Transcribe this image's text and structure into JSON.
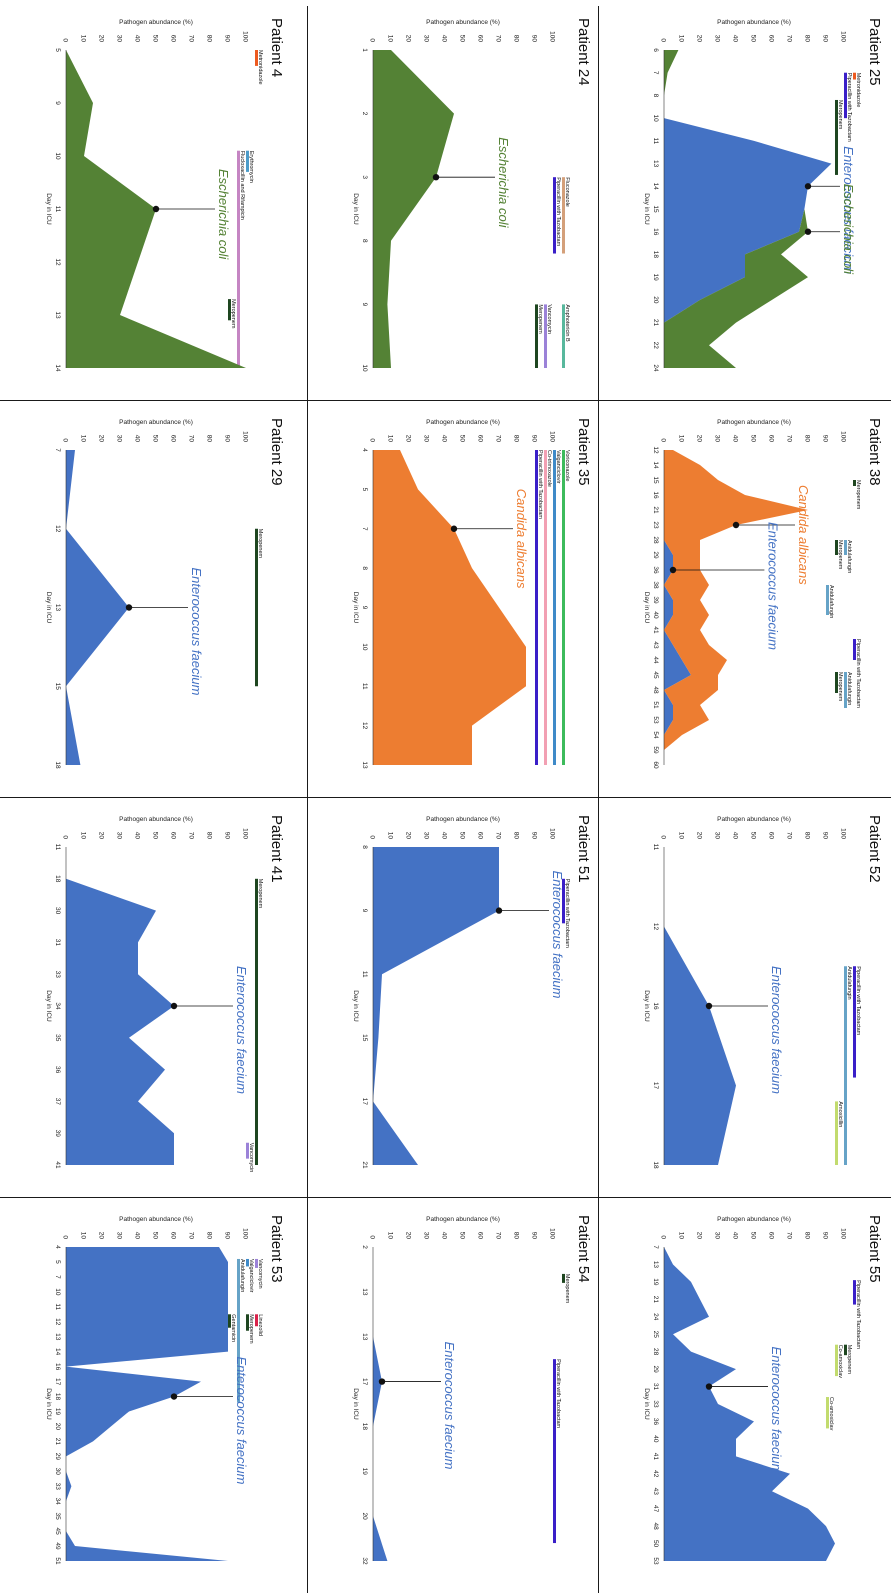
{
  "y_axis_label": "Pathogen abundance (%)",
  "x_axis_label": "Day in ICU",
  "y_ticks": [
    0,
    10,
    20,
    30,
    40,
    50,
    60,
    70,
    80,
    90,
    100
  ],
  "colors": {
    "Escherichia coli": "#548235",
    "Enterococcus faecium": "#4472c4",
    "Candida albicans": "#ed7d31",
    "Meropenem": "#1e4620",
    "Metronidazole": "#ed5a1f",
    "Erythromycin": "#4c9cc9",
    "Flucloxacillin and Rifampicin": "#c585c3",
    "Fluconazole": "#d4a07a",
    "Piperacillin with Tazobactam": "#3a1fc8",
    "Vancomycin": "#9b82d8",
    "Amphotericin B": "#58b89d",
    "Voriconazole": "#3dbb5c",
    "Valganciclovir": "#3f8ac8",
    "Co-trimoxazole": "#f2a0b3",
    "Anidulafungin": "#66a3c7",
    "Gentamicin": "#1e4620",
    "Linezolid": "#d9224a",
    "Amoxicillin": "#c2db6e",
    "Co-amoxiclav": "#c2db6e"
  },
  "chart_data": [
    {
      "type": "area",
      "title": "Patient 4",
      "xlabel": "Day in ICU",
      "ylabel": "Pathogen abundance (%)",
      "ylim": [
        0,
        100
      ],
      "x": [
        "5",
        "9",
        "10",
        "11",
        "12",
        "13",
        "14"
      ],
      "series": [
        {
          "name": "Escherichia coli",
          "values": [
            0,
            15,
            10,
            50,
            40,
            30,
            100
          ]
        }
      ],
      "annotations": [
        {
          "text": "Escherichia coli",
          "series": 0,
          "point": 3
        }
      ],
      "drugs": [
        {
          "label": "Metronidazole",
          "start": 0,
          "end": 0.3
        },
        {
          "label": "Erythromycin",
          "start": 1.9,
          "end": 2.3
        },
        {
          "label": "Flucloxacillin and Rifampicin",
          "start": 1.9,
          "end": 6
        },
        {
          "label": "Meropenem",
          "start": 4.7,
          "end": 5.1
        }
      ]
    },
    {
      "type": "area",
      "title": "Patient 24",
      "xlabel": "Day in ICU",
      "ylabel": "Pathogen abundance (%)",
      "ylim": [
        0,
        100
      ],
      "x": [
        "1",
        "2",
        "3",
        "8",
        "9",
        "10"
      ],
      "series": [
        {
          "name": "Escherichia coli",
          "values": [
            10,
            45,
            35,
            10,
            8,
            10
          ]
        }
      ],
      "annotations": [
        {
          "text": "Escherichia coli",
          "series": 0,
          "point": 2
        }
      ],
      "drugs": [
        {
          "label": "Fluconazole",
          "start": 2,
          "end": 3.2
        },
        {
          "label": "Piperacillin with Tazobactam",
          "start": 2,
          "end": 3.2
        },
        {
          "label": "Vancomycin",
          "start": 4,
          "end": 5
        },
        {
          "label": "Meropenem",
          "start": 4,
          "end": 5
        },
        {
          "label": "Amphotericin B",
          "start": 4,
          "end": 5
        }
      ]
    },
    {
      "type": "area",
      "title": "Patient 25",
      "xlabel": "Day in ICU",
      "ylabel": "Pathogen abundance (%)",
      "ylim": [
        0,
        100
      ],
      "x": [
        "6",
        "7",
        "8",
        "10",
        "11",
        "13",
        "14",
        "15",
        "16",
        "18",
        "19",
        "20",
        "21",
        "22",
        "24"
      ],
      "series": [
        {
          "name": "Enterococcus faecium",
          "values": [
            0,
            0,
            0,
            0,
            50,
            93,
            80,
            78,
            75,
            45,
            45,
            20,
            0,
            0,
            0
          ]
        },
        {
          "name": "Escherichia coli",
          "values": [
            8,
            2,
            0,
            0,
            0,
            0,
            0,
            0,
            5,
            20,
            35,
            40,
            40,
            25,
            40
          ]
        }
      ],
      "annotations": [
        {
          "text": "Enterococcus faecium",
          "series": 0,
          "point": 6
        },
        {
          "text": "Escherichia coli",
          "series": 1,
          "point": 8
        }
      ],
      "drugs": [
        {
          "label": "Metronidazole",
          "start": 1,
          "end": 1.3
        },
        {
          "label": "Piperacillin with Tazobactam",
          "start": 1,
          "end": 3
        },
        {
          "label": "Meropenem",
          "start": 2.2,
          "end": 5.5
        }
      ]
    },
    {
      "type": "area",
      "title": "Patient 29",
      "xlabel": "Day in ICU",
      "ylabel": "Pathogen abundance (%)",
      "ylim": [
        0,
        100
      ],
      "x": [
        "7",
        "12",
        "13",
        "15",
        "18"
      ],
      "series": [
        {
          "name": "Enterococcus faecium",
          "values": [
            5,
            0,
            35,
            0,
            8
          ]
        }
      ],
      "annotations": [
        {
          "text": "Enterococcus faecium",
          "series": 0,
          "point": 2
        }
      ],
      "drugs": [
        {
          "label": "Meropenem",
          "start": 1,
          "end": 3
        }
      ]
    },
    {
      "type": "area",
      "title": "Patient 35",
      "xlabel": "Day in ICU",
      "ylabel": "Pathogen abundance (%)",
      "ylim": [
        0,
        100
      ],
      "x": [
        "4",
        "5",
        "7",
        "8",
        "9",
        "10",
        "11",
        "12",
        "13"
      ],
      "series": [
        {
          "name": "Candida albicans",
          "values": [
            15,
            25,
            45,
            55,
            70,
            85,
            85,
            55,
            55
          ]
        }
      ],
      "annotations": [
        {
          "text": "Candida albicans",
          "series": 0,
          "point": 2
        }
      ],
      "drugs": [
        {
          "label": "Voriconazole",
          "start": 0,
          "end": 8
        },
        {
          "label": "Valganciclovir",
          "start": 0,
          "end": 8
        },
        {
          "label": "Co-trimoxazole",
          "start": 0,
          "end": 8
        },
        {
          "label": "Piperacillin with Tazobactam",
          "start": 0,
          "end": 8
        }
      ]
    },
    {
      "type": "area",
      "title": "Patient 38",
      "xlabel": "Day in ICU",
      "ylabel": "Pathogen abundance (%)",
      "ylim": [
        0,
        100
      ],
      "x": [
        "12",
        "14",
        "15",
        "16",
        "21",
        "23",
        "28",
        "29",
        "36",
        "38",
        "39",
        "40",
        "41",
        "43",
        "44",
        "45",
        "48",
        "51",
        "53",
        "54",
        "59",
        "60"
      ],
      "series": [
        {
          "name": "Enterococcus faecium",
          "values": [
            0,
            0,
            0,
            0,
            0,
            0,
            0,
            5,
            5,
            0,
            5,
            5,
            0,
            5,
            10,
            15,
            0,
            5,
            5,
            0,
            0,
            0
          ]
        },
        {
          "name": "Candida albicans",
          "values": [
            5,
            20,
            30,
            45,
            80,
            40,
            20,
            15,
            15,
            25,
            15,
            20,
            20,
            20,
            25,
            15,
            30,
            15,
            20,
            10,
            0,
            0
          ]
        }
      ],
      "annotations": [
        {
          "text": "Candida albicans",
          "series": 1,
          "point": 5
        },
        {
          "text": "Enterococcus faecium",
          "series": 0,
          "point": 8
        }
      ],
      "drugs": [
        {
          "label": "Meropenem",
          "start": 2,
          "end": 2.4
        },
        {
          "label": "Anidulafungin",
          "start": 6,
          "end": 7
        },
        {
          "label": "Meropenem",
          "start": 6,
          "end": 7
        },
        {
          "label": "Anidulafungin",
          "start": 9,
          "end": 11
        },
        {
          "label": "Piperacillin with Tazobactam",
          "start": 12.6,
          "end": 14
        },
        {
          "label": "Anidulafungin",
          "start": 14.8,
          "end": 17.2
        },
        {
          "label": "Meropenem",
          "start": 14.8,
          "end": 16.2
        }
      ]
    },
    {
      "type": "area",
      "title": "Patient 41",
      "xlabel": "Day in ICU",
      "ylabel": "Pathogen abundance (%)",
      "ylim": [
        0,
        100
      ],
      "x": [
        "11",
        "18",
        "30",
        "31",
        "33",
        "34",
        "35",
        "36",
        "37",
        "39",
        "41"
      ],
      "series": [
        {
          "name": "Enterococcus faecium",
          "values": [
            0,
            0,
            50,
            40,
            40,
            60,
            35,
            55,
            40,
            60,
            60
          ]
        }
      ],
      "annotations": [
        {
          "text": "Enterococcus faecium",
          "series": 0,
          "point": 5
        }
      ],
      "drugs": [
        {
          "label": "Meropenem",
          "start": 1,
          "end": 10
        },
        {
          "label": "Vancomycin",
          "start": 9.3,
          "end": 9.8
        }
      ]
    },
    {
      "type": "area",
      "title": "Patient 51",
      "xlabel": "Day in ICU",
      "ylabel": "Pathogen abundance (%)",
      "ylim": [
        0,
        100
      ],
      "x": [
        "8",
        "9",
        "11",
        "15",
        "17",
        "21"
      ],
      "series": [
        {
          "name": "Enterococcus faecium",
          "values": [
            70,
            70,
            5,
            3,
            0,
            25
          ]
        }
      ],
      "annotations": [
        {
          "text": "Enterococcus faecium",
          "series": 0,
          "point": 1
        }
      ],
      "drugs": [
        {
          "label": "Piperacillin with Tazobactam",
          "start": 0.5,
          "end": 1.2
        }
      ]
    },
    {
      "type": "area",
      "title": "Patient 52",
      "xlabel": "Day in ICU",
      "ylabel": "Pathogen abundance (%)",
      "ylim": [
        0,
        100
      ],
      "x": [
        "11",
        "12",
        "16",
        "17",
        "18"
      ],
      "series": [
        {
          "name": "Enterococcus faecium",
          "values": [
            0,
            0,
            25,
            40,
            30
          ]
        }
      ],
      "annotations": [
        {
          "text": "Enterococcus faecium",
          "series": 0,
          "point": 2
        }
      ],
      "drugs": [
        {
          "label": "Piperacillin with Tazobactam",
          "start": 1.5,
          "end": 2.9
        },
        {
          "label": "Anidulafungin",
          "start": 1.5,
          "end": 4
        },
        {
          "label": "Amoxicillin",
          "start": 3.2,
          "end": 4
        }
      ]
    },
    {
      "type": "area",
      "title": "Patient 53",
      "xlabel": "Day in ICU",
      "ylabel": "Pathogen abundance (%)",
      "ylim": [
        0,
        100
      ],
      "x": [
        "4",
        "5",
        "7",
        "10",
        "11",
        "12",
        "13",
        "14",
        "16",
        "17",
        "18",
        "19",
        "20",
        "21",
        "29",
        "30",
        "33",
        "34",
        "35",
        "45",
        "49",
        "51"
      ],
      "series": [
        {
          "name": "Enterococcus faecium",
          "values": [
            85,
            90,
            90,
            90,
            90,
            90,
            90,
            90,
            0,
            75,
            60,
            35,
            25,
            15,
            0,
            0,
            3,
            0,
            0,
            0,
            5,
            90
          ]
        }
      ],
      "annotations": [
        {
          "text": "Enterococcus faecium",
          "series": 0,
          "point": 10
        }
      ],
      "drugs": [
        {
          "label": "Vancomycin",
          "start": 0.8,
          "end": 1.4
        },
        {
          "label": "Valganciclovir",
          "start": 0.8,
          "end": 1.3
        },
        {
          "label": "Anidulafungin",
          "start": 0.8,
          "end": 10.4
        },
        {
          "label": "Gentamicin",
          "start": 4.5,
          "end": 5.4
        },
        {
          "label": "Linezolid",
          "start": 4.5,
          "end": 5.3
        },
        {
          "label": "Meropenem",
          "start": 4.5,
          "end": 5.6
        }
      ]
    },
    {
      "type": "area",
      "title": "Patient 54",
      "xlabel": "Day in ICU",
      "ylabel": "Pathogen abundance (%)",
      "ylim": [
        0,
        100
      ],
      "x": [
        "2",
        "13",
        "13",
        "17",
        "18",
        "19",
        "20",
        "32"
      ],
      "series": [
        {
          "name": "Enterococcus faecium",
          "values": [
            0,
            0,
            0,
            5,
            0,
            0,
            0,
            8
          ]
        }
      ],
      "annotations": [
        {
          "text": "Enterococcus faecium",
          "series": 0,
          "point": 3
        }
      ],
      "drugs": [
        {
          "label": "Meropenem",
          "start": 0.6,
          "end": 0.8
        },
        {
          "label": "Piperacillin with Tazobactam",
          "start": 2.5,
          "end": 6.6
        }
      ]
    },
    {
      "type": "area",
      "title": "Patient 55",
      "xlabel": "Day in ICU",
      "ylabel": "Pathogen abundance (%)",
      "ylim": [
        0,
        100
      ],
      "x": [
        "7",
        "13",
        "19",
        "21",
        "24",
        "25",
        "28",
        "29",
        "31",
        "33",
        "36",
        "40",
        "41",
        "42",
        "43",
        "47",
        "48",
        "50",
        "53"
      ],
      "series": [
        {
          "name": "Enterococcus faecium",
          "values": [
            0,
            5,
            15,
            20,
            25,
            5,
            15,
            40,
            25,
            30,
            50,
            40,
            40,
            70,
            60,
            80,
            90,
            95,
            90
          ]
        }
      ],
      "annotations": [
        {
          "text": "Enterococcus faecium",
          "series": 0,
          "point": 8
        }
      ],
      "drugs": [
        {
          "label": "Piperacillin with Tazobactam",
          "start": 1.9,
          "end": 3.3
        },
        {
          "label": "Meropenem",
          "start": 5.6,
          "end": 6.2
        },
        {
          "label": "Co-amoxiclav",
          "start": 5.6,
          "end": 7.4
        },
        {
          "label": "Co-amoxiclav",
          "start": 8.6,
          "end": 10.4
        }
      ]
    }
  ]
}
